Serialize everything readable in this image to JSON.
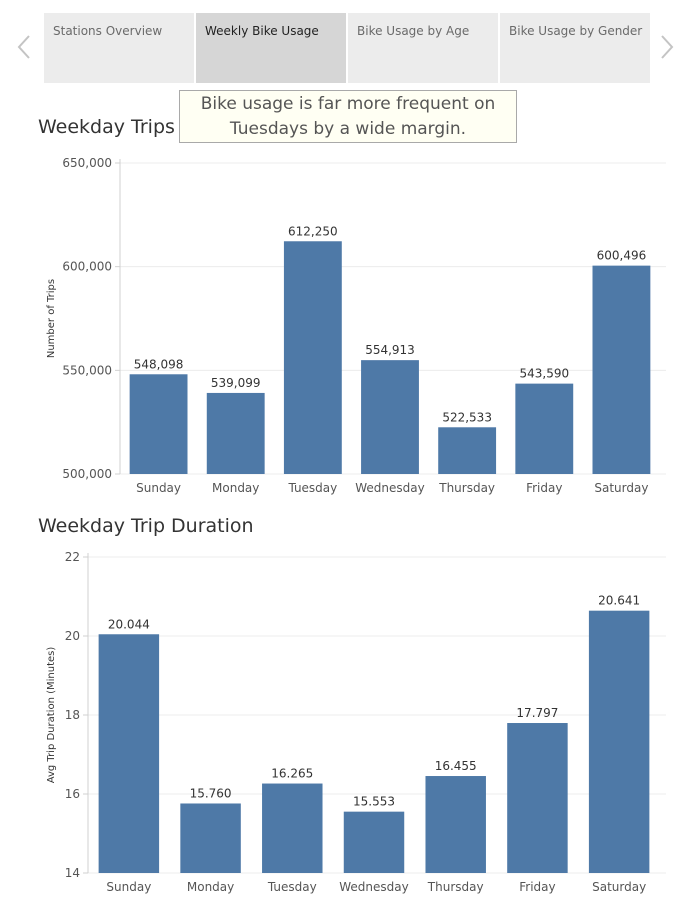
{
  "tabs": [
    {
      "label": "Stations Overview",
      "active": false
    },
    {
      "label": "Weekly Bike Usage",
      "active": true
    },
    {
      "label": "Bike Usage by Age",
      "active": false
    },
    {
      "label": "Bike Usage by Gender",
      "active": false
    }
  ],
  "nav": {
    "prev_icon": "chevron-left-icon",
    "next_icon": "chevron-right-icon"
  },
  "caption": "Bike usage is far more frequent on Tuesdays by a wide margin.",
  "colors": {
    "bar": "#4e79a7",
    "grid": "#ececec",
    "axis": "#d0d0d0"
  },
  "chart_data": [
    {
      "type": "bar",
      "title": "Weekday Trips",
      "ylabel": "Number of Trips",
      "xlabel": "",
      "categories": [
        "Sunday",
        "Monday",
        "Tuesday",
        "Wednesday",
        "Thursday",
        "Friday",
        "Saturday"
      ],
      "values": [
        548098,
        539099,
        612250,
        554913,
        522533,
        543590,
        600496
      ],
      "data_labels": [
        "548,098",
        "539,099",
        "612,250",
        "554,913",
        "522,533",
        "543,590",
        "600,496"
      ],
      "ylim": [
        500000,
        650000
      ],
      "yticks": [
        500000,
        550000,
        600000,
        650000
      ],
      "ytick_labels": [
        "500,000",
        "550,000",
        "600,000",
        "650,000"
      ],
      "grid": true
    },
    {
      "type": "bar",
      "title": "Weekday Trip Duration",
      "ylabel": "Avg Trip Duration (Minutes)",
      "xlabel": "",
      "categories": [
        "Sunday",
        "Monday",
        "Tuesday",
        "Wednesday",
        "Thursday",
        "Friday",
        "Saturday"
      ],
      "values": [
        20.044,
        15.76,
        16.265,
        15.553,
        16.455,
        17.797,
        20.641
      ],
      "data_labels": [
        "20.044",
        "15.760",
        "16.265",
        "15.553",
        "16.455",
        "17.797",
        "20.641"
      ],
      "ylim": [
        14,
        22
      ],
      "yticks": [
        14,
        16,
        18,
        20,
        22
      ],
      "ytick_labels": [
        "14",
        "16",
        "18",
        "20",
        "22"
      ],
      "grid": true
    }
  ]
}
